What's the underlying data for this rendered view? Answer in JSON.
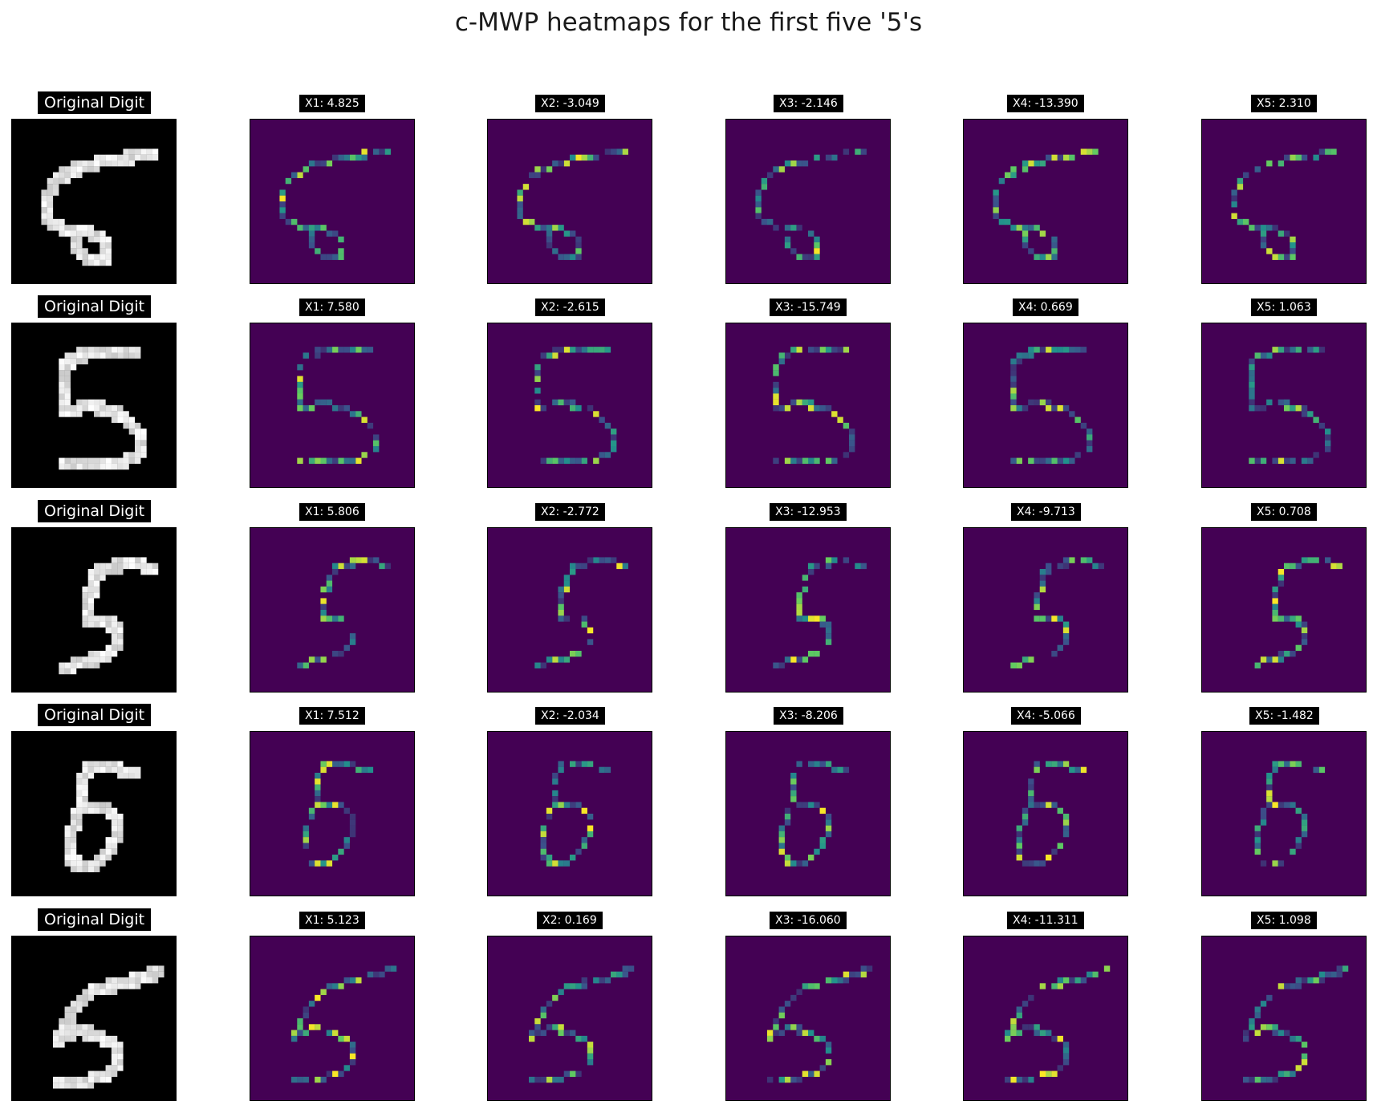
{
  "figure": {
    "title": "c-MWP heatmaps for the first five '5's"
  },
  "chart_data": {
    "type": "heatmap",
    "title": "c-MWP heatmaps for the first five '5's",
    "grid": "5x6",
    "colormap_original": "gray",
    "colormap_heatmap": "viridis",
    "colors": {
      "heat_background": "#440154",
      "original_background": "#000000",
      "title_background": "#000000",
      "title_text": "#ffffff"
    },
    "rows": [
      {
        "original_label": "Original Digit",
        "panels": [
          {
            "label": "X1: 4.825",
            "feature": "X1",
            "value": 4.825
          },
          {
            "label": "X2: -3.049",
            "feature": "X2",
            "value": -3.049
          },
          {
            "label": "X3: -2.146",
            "feature": "X3",
            "value": -2.146
          },
          {
            "label": "X4: -13.390",
            "feature": "X4",
            "value": -13.39
          },
          {
            "label": "X5: 2.310",
            "feature": "X5",
            "value": 2.31
          }
        ]
      },
      {
        "original_label": "Original Digit",
        "panels": [
          {
            "label": "X1: 7.580",
            "feature": "X1",
            "value": 7.58
          },
          {
            "label": "X2: -2.615",
            "feature": "X2",
            "value": -2.615
          },
          {
            "label": "X3: -15.749",
            "feature": "X3",
            "value": -15.749
          },
          {
            "label": "X4: 0.669",
            "feature": "X4",
            "value": 0.669
          },
          {
            "label": "X5: 1.063",
            "feature": "X5",
            "value": 1.063
          }
        ]
      },
      {
        "original_label": "Original Digit",
        "panels": [
          {
            "label": "X1: 5.806",
            "feature": "X1",
            "value": 5.806
          },
          {
            "label": "X2: -2.772",
            "feature": "X2",
            "value": -2.772
          },
          {
            "label": "X3: -12.953",
            "feature": "X3",
            "value": -12.953
          },
          {
            "label": "X4: -9.713",
            "feature": "X4",
            "value": -9.713
          },
          {
            "label": "X5: 0.708",
            "feature": "X5",
            "value": 0.708
          }
        ]
      },
      {
        "original_label": "Original Digit",
        "panels": [
          {
            "label": "X1: 7.512",
            "feature": "X1",
            "value": 7.512
          },
          {
            "label": "X2: -2.034",
            "feature": "X2",
            "value": -2.034
          },
          {
            "label": "X3: -8.206",
            "feature": "X3",
            "value": -8.206
          },
          {
            "label": "X4: -5.066",
            "feature": "X4",
            "value": -5.066
          },
          {
            "label": "X5: -1.482",
            "feature": "X5",
            "value": -1.482
          }
        ]
      },
      {
        "original_label": "Original Digit",
        "panels": [
          {
            "label": "X1: 5.123",
            "feature": "X1",
            "value": 5.123
          },
          {
            "label": "X2: 0.169",
            "feature": "X2",
            "value": 0.169
          },
          {
            "label": "X3: -16.060",
            "feature": "X3",
            "value": -16.06
          },
          {
            "label": "X4: -11.311",
            "feature": "X4",
            "value": -11.311
          },
          {
            "label": "X5: 1.098",
            "feature": "X5",
            "value": 1.098
          }
        ]
      }
    ]
  }
}
